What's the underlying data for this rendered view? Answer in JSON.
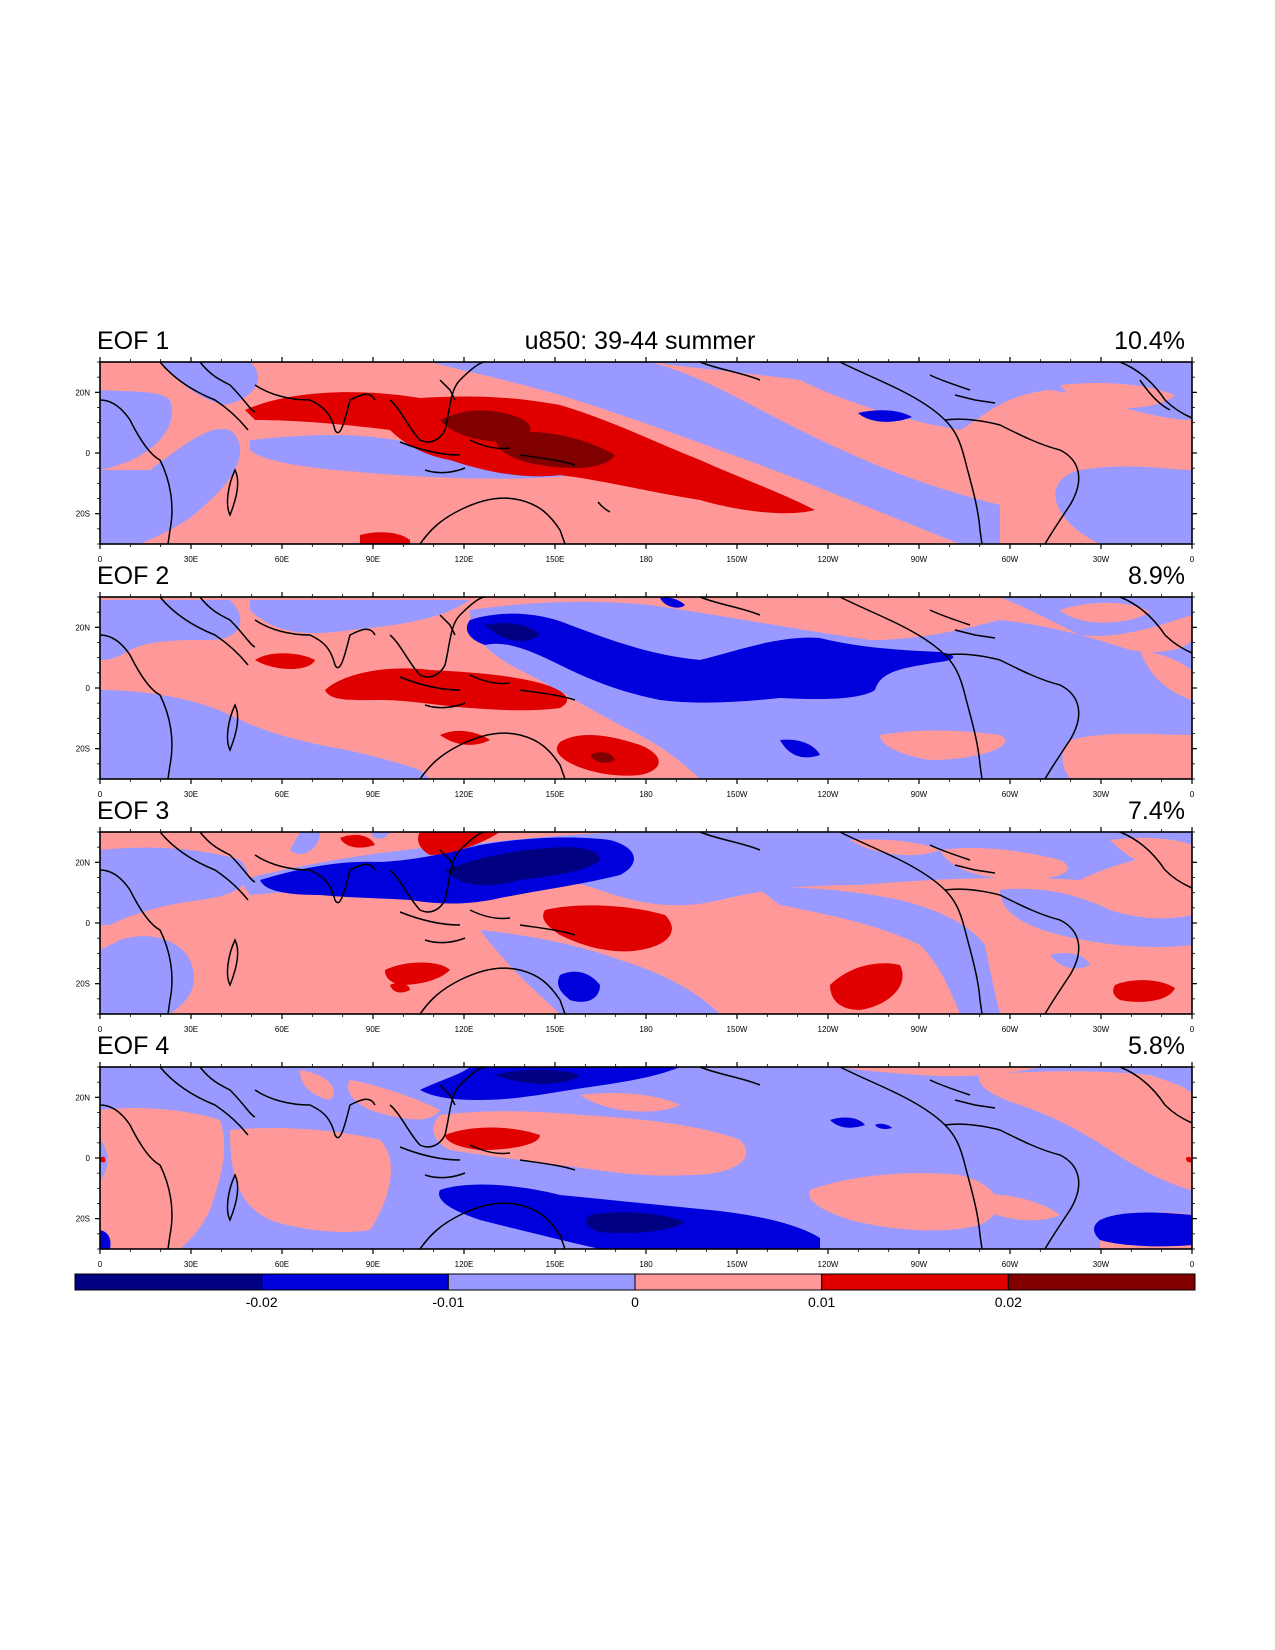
{
  "figure": {
    "main_title": "u850: 39-44 summer",
    "colors": {
      "level_-3": "#000080",
      "level_-2": "#0000dd",
      "level_-1": "#9999ff",
      "level_1": "#ff9999",
      "level_2": "#e00000",
      "level_3": "#800000",
      "coast": "#000000"
    }
  },
  "panels": [
    {
      "label": "EOF 1",
      "variance": "10.4%"
    },
    {
      "label": "EOF 2",
      "variance": "8.9%"
    },
    {
      "label": "EOF 3",
      "variance": "7.4%"
    },
    {
      "label": "EOF 4",
      "variance": "5.8%"
    }
  ],
  "axes": {
    "lat_ticks": [
      "20N",
      "0",
      "20S"
    ],
    "lat_values": [
      20,
      0,
      -20
    ],
    "lat_range": [
      -30,
      30
    ],
    "lon_ticks": [
      "0",
      "30E",
      "60E",
      "90E",
      "120E",
      "150E",
      "180",
      "150W",
      "120W",
      "90W",
      "60W",
      "30W",
      "0"
    ],
    "lon_values": [
      0,
      30,
      60,
      90,
      120,
      150,
      180,
      210,
      240,
      270,
      300,
      330,
      360
    ],
    "lon_range": [
      0,
      360
    ]
  },
  "colorbar": {
    "labels": [
      "-0.02",
      "-0.01",
      "0",
      "0.01",
      "0.02"
    ],
    "label_values": [
      -0.02,
      -0.01,
      0,
      0.01,
      0.02
    ],
    "range": [
      -0.03,
      0.03
    ],
    "boxes": [
      "#000080",
      "#0000dd",
      "#9999ff",
      "#ff9999",
      "#e00000",
      "#800000"
    ]
  }
}
